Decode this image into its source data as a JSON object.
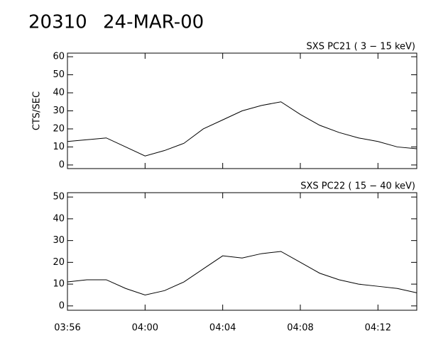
{
  "header": {
    "id": "20310",
    "date": "24-MAR-00"
  },
  "chart_data": [
    {
      "type": "line",
      "title": "SXS PC21  (  3 − 15 keV)",
      "y_label": "CTS/SEC",
      "color": "#000000",
      "x": [
        "03:56",
        "03:57",
        "03:58",
        "03:59",
        "04:00",
        "04:01",
        "04:02",
        "04:03",
        "04:04",
        "04:05",
        "04:06",
        "04:07",
        "04:08",
        "04:09",
        "04:10",
        "04:11",
        "04:12",
        "04:13",
        "04:14"
      ],
      "values": [
        13,
        14,
        15,
        10,
        5,
        8,
        12,
        20,
        25,
        30,
        33,
        35,
        28,
        22,
        18,
        15,
        13,
        10,
        9
      ],
      "xlim": [
        "03:56",
        "04:14"
      ],
      "xticks": [
        "03:56",
        "04:00",
        "04:04",
        "04:08",
        "04:12"
      ],
      "ylim": [
        -2,
        62
      ],
      "yticks": [
        0,
        10,
        20,
        30,
        40,
        50,
        60
      ],
      "show_x_labels": false
    },
    {
      "type": "line",
      "title": "SXS PC22  ( 15 − 40 keV)",
      "color": "#000000",
      "x": [
        "03:56",
        "03:57",
        "03:58",
        "03:59",
        "04:00",
        "04:01",
        "04:02",
        "04:03",
        "04:04",
        "04:05",
        "04:06",
        "04:07",
        "04:08",
        "04:09",
        "04:10",
        "04:11",
        "04:12",
        "04:13",
        "04:14"
      ],
      "values": [
        11,
        12,
        12,
        8,
        5,
        7,
        11,
        17,
        23,
        22,
        24,
        25,
        20,
        15,
        12,
        10,
        9,
        8,
        6
      ],
      "xlim": [
        "03:56",
        "04:14"
      ],
      "xticks": [
        "03:56",
        "04:00",
        "04:04",
        "04:08",
        "04:12"
      ],
      "ylim": [
        -2,
        52
      ],
      "yticks": [
        0,
        10,
        20,
        30,
        40,
        50
      ],
      "show_x_labels": true
    }
  ]
}
